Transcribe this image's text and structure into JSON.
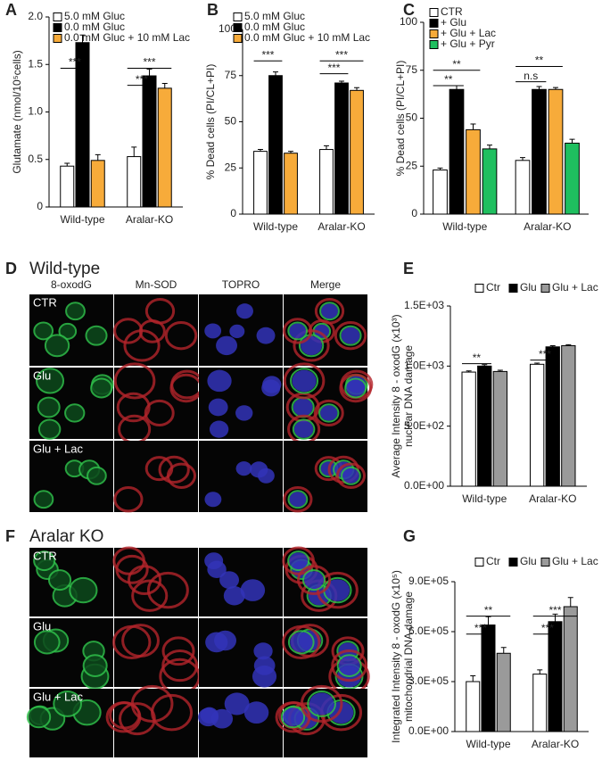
{
  "panel_labels": [
    "A",
    "B",
    "C",
    "D",
    "E",
    "F",
    "G"
  ],
  "image_panels": [
    {
      "title": "Wild-type",
      "columns": [
        "8-oxodG",
        "Mn-SOD",
        "TOPRO",
        "Merge"
      ],
      "rows": [
        "CTR",
        "Glu",
        "Glu + Lac"
      ]
    },
    {
      "title": "Aralar KO",
      "rows": [
        "CTR",
        "Glu",
        "Glu + Lac"
      ]
    }
  ],
  "chart_data": [
    {
      "type": "bar",
      "y_label": "Glutamate (nmol/10⁵cells)",
      "categories": [
        "Wild-type",
        "Aralar-KO"
      ],
      "series": [
        {
          "name": "5.0 mM Gluc",
          "color": "#ffffff",
          "values": [
            0.43,
            0.53
          ],
          "errors": [
            0.03,
            0.1
          ]
        },
        {
          "name": "0.0 mM Gluc",
          "color": "#000000",
          "values": [
            1.73,
            1.38
          ],
          "errors": [
            0.08,
            0.07
          ]
        },
        {
          "name": "0.0 mM Gluc + 10 mM Lac",
          "color": "#f7ab3a",
          "values": [
            0.49,
            1.25
          ],
          "errors": [
            0.06,
            0.05
          ]
        }
      ],
      "ylim": [
        0,
        2
      ],
      "yticks": [
        0,
        0.5,
        {
          "value": 1,
          "label": "1.0"
        },
        1.5,
        {
          "value": 2,
          "label": "2.0"
        }
      ],
      "annotations": [
        "***",
        "***",
        "***"
      ]
    },
    {
      "type": "bar",
      "y_label": "% Dead cells (PI/CL+PI)",
      "categories": [
        "Wild-type",
        "Aralar-KO"
      ],
      "series": [
        {
          "name": "5.0 mM Gluc",
          "color": "#ffffff",
          "values": [
            34,
            35
          ],
          "errors": [
            1,
            2
          ]
        },
        {
          "name": "0.0 mM Gluc",
          "color": "#000000",
          "values": [
            75,
            71
          ],
          "errors": [
            2,
            1
          ]
        },
        {
          "name": "0.0 mM Gluc + 10 mM Lac",
          "color": "#f7ab3a",
          "values": [
            33,
            67
          ],
          "errors": [
            1,
            1.5
          ]
        }
      ],
      "ylim": [
        0,
        100
      ],
      "yticks": [
        0,
        25,
        50,
        75,
        100
      ],
      "annotations": [
        "***",
        "***",
        "***"
      ]
    },
    {
      "type": "bar",
      "y_label": "% Dead cells (PI/CL+PI)",
      "categories": [
        "Wild-type",
        "Aralar-KO"
      ],
      "series": [
        {
          "name": "CTR",
          "color": "#ffffff",
          "values": [
            23,
            28
          ],
          "errors": [
            1,
            1.5
          ]
        },
        {
          "name": "+ Glu",
          "color": "#000000",
          "values": [
            65,
            65
          ],
          "errors": [
            2,
            1.5
          ]
        },
        {
          "name": "+ Glu + Lac",
          "color": "#f7ab3a",
          "values": [
            44,
            65
          ],
          "errors": [
            3,
            1
          ]
        },
        {
          "name": "+ Glu + Pyr",
          "color": "#1fbf5f",
          "values": [
            34,
            37
          ],
          "errors": [
            2,
            2
          ]
        }
      ],
      "ylim": [
        0,
        100
      ],
      "yticks": [
        0,
        25,
        50,
        75,
        100
      ],
      "annotations": [
        "**",
        "**",
        "n.s",
        "**"
      ]
    },
    {
      "type": "bar",
      "y_label": [
        "Average Intensity 8 - oxodG (x10³)",
        "nuclear DNA damage"
      ],
      "categories": [
        "Wild-type",
        "Aralar-KO"
      ],
      "series": [
        {
          "name": "Ctr",
          "color": "#ffffff",
          "values": [
            950,
            1015
          ],
          "errors": [
            10,
            10
          ]
        },
        {
          "name": "Glu",
          "color": "#000000",
          "values": [
            1000,
            1160
          ],
          "errors": [
            12,
            10
          ]
        },
        {
          "name": "Glu + Lac",
          "color": "#9a9a9a",
          "values": [
            955,
            1170
          ],
          "errors": [
            10,
            8
          ]
        }
      ],
      "ylim": [
        0,
        1500
      ],
      "yticks": [
        {
          "value": 0,
          "label": "0.0E+00"
        },
        {
          "value": 500,
          "label": "5.0E+02"
        },
        {
          "value": 1000,
          "label": "1.0E+03"
        },
        {
          "value": 1500,
          "label": "1.5E+03"
        }
      ],
      "annotations": [
        "**",
        "***"
      ]
    },
    {
      "type": "bar",
      "y_label": [
        "Integrated Intensity 8 - oxodG (x10⁵)",
        "mitochondrial DNA damage"
      ],
      "categories": [
        "Wild-type",
        "Aralar-KO"
      ],
      "series": [
        {
          "name": "Ctr",
          "color": "#ffffff",
          "values": [
            300000,
            345000
          ],
          "errors": [
            35000,
            25000
          ]
        },
        {
          "name": "Glu",
          "color": "#000000",
          "values": [
            640000,
            660000
          ],
          "errors": [
            50000,
            45000
          ]
        },
        {
          "name": "Glu + Lac",
          "color": "#9a9a9a",
          "values": [
            470000,
            750000
          ],
          "errors": [
            35000,
            55000
          ]
        }
      ],
      "ylim": [
        0,
        900000
      ],
      "yticks": [
        {
          "value": 0,
          "label": "0.0E+00"
        },
        {
          "value": 300000,
          "label": "3.0E+05"
        },
        {
          "value": 600000,
          "label": "6.0E+05"
        },
        {
          "value": 900000,
          "label": "9.0E+05"
        }
      ],
      "annotations": [
        "***",
        "**",
        "***",
        "***"
      ]
    }
  ]
}
